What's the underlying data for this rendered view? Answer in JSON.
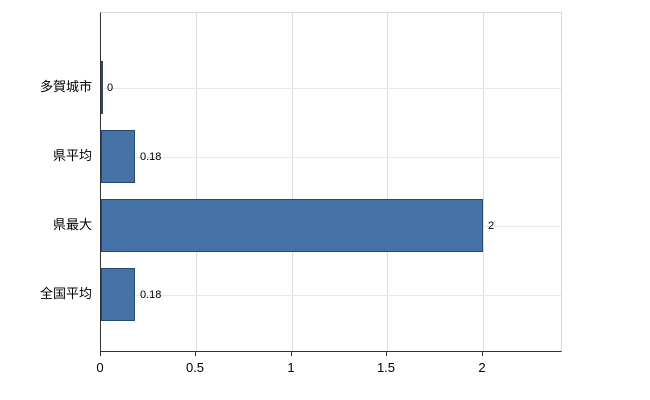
{
  "chart_data": {
    "type": "bar",
    "orientation": "horizontal",
    "title": "",
    "xlabel": "",
    "ylabel": "",
    "categories": [
      "多賀城市",
      "県平均",
      "県最大",
      "全国平均"
    ],
    "values": [
      0,
      0.18,
      2,
      0.18
    ],
    "value_labels": [
      "0",
      "0.18",
      "2",
      "0.18"
    ],
    "xlim": [
      0,
      2.41
    ],
    "xticks": [
      0,
      0.5,
      1,
      1.5,
      2
    ],
    "xtick_labels": [
      "0",
      "0.5",
      "1",
      "1.5",
      "2"
    ],
    "grid": true,
    "legend": "none",
    "colors": {
      "bar_fill": "#4572a7",
      "bar_border": "#27496d",
      "gridline": "#dddddd",
      "axis_line": "#333333",
      "plot_border": "#d8d8d8",
      "text": "#000000",
      "background": "#ffffff"
    }
  }
}
